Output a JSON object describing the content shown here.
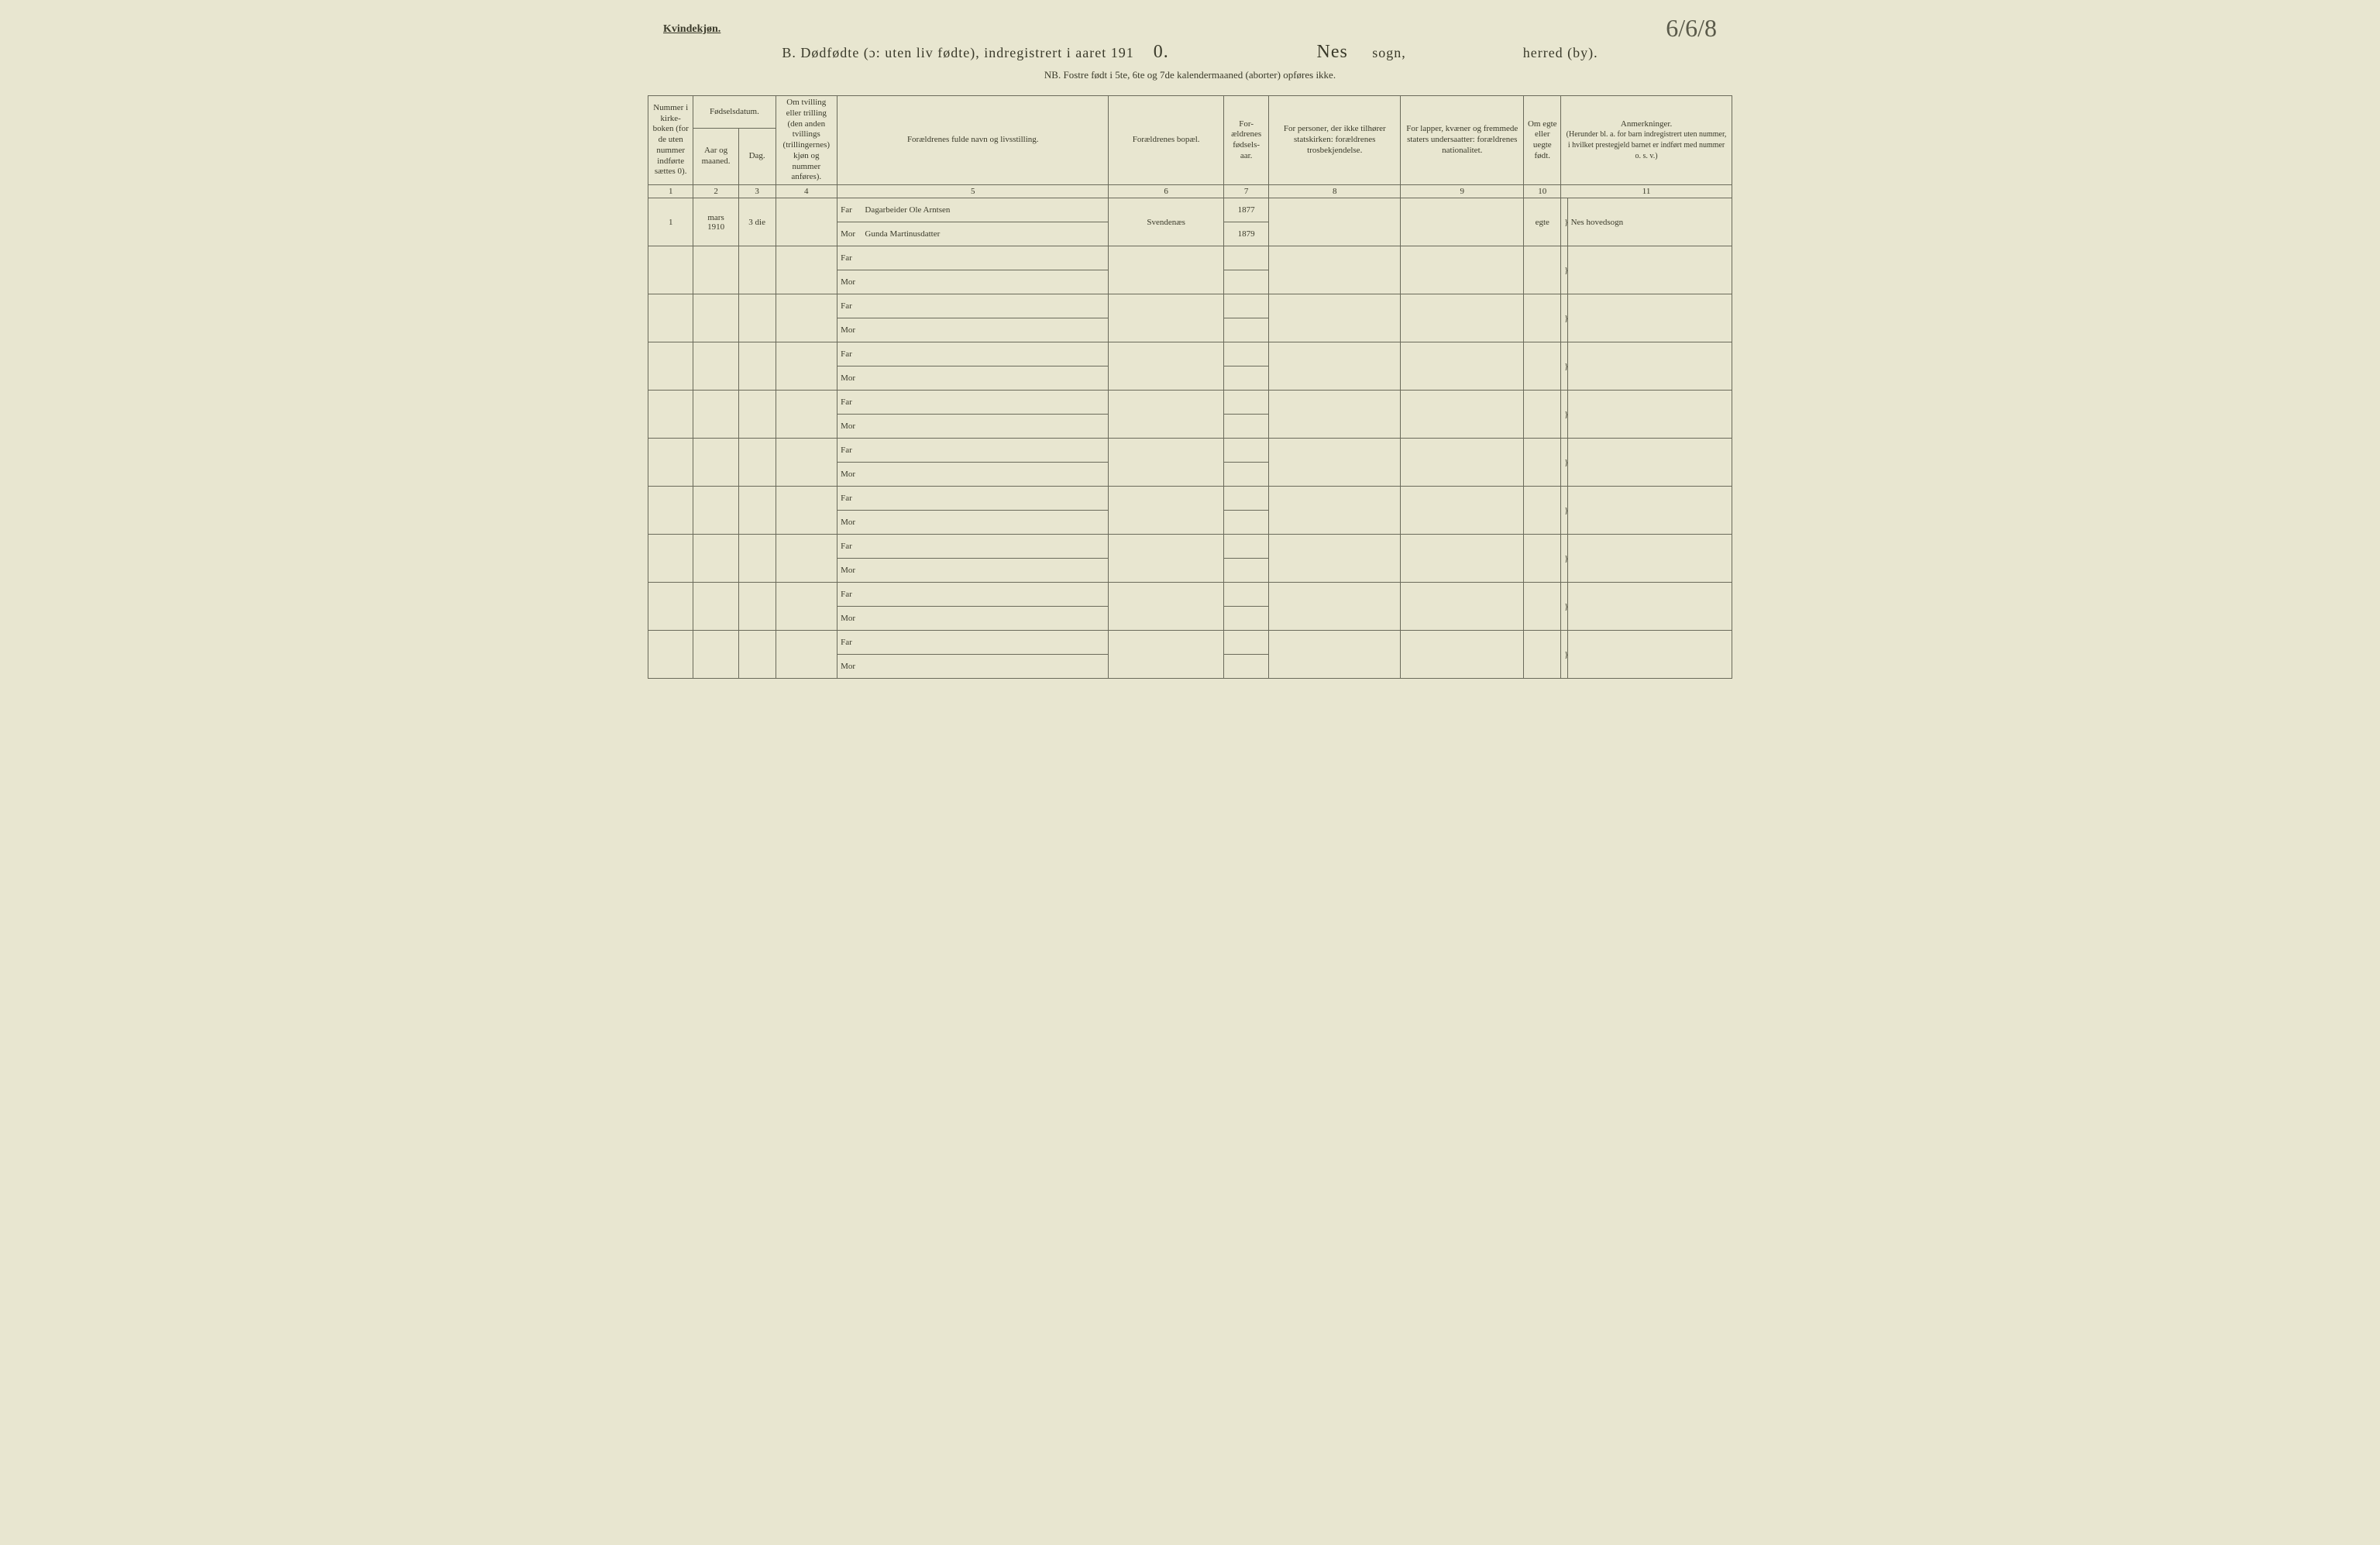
{
  "header": {
    "gender_label": "Kvindekjøn.",
    "page_number_hand": "6/6/8",
    "title_prefix": "B.   Dødfødte (ɔ: uten liv fødte), indregistrert i aaret 191",
    "title_year_hand": "0.",
    "parish_hand": "Nes",
    "sogn_label": "sogn,",
    "herred_label": "herred (by).",
    "subtitle": "NB.  Fostre født i 5te, 6te og 7de kalendermaaned (aborter) opføres ikke."
  },
  "columns": {
    "c1": "Nummer i kirke-boken (for de uten nummer indførte sættes 0).",
    "c2_top": "Fødselsdatum.",
    "c2a": "Aar og maaned.",
    "c2b": "Dag.",
    "c4": "Om tvilling eller trilling (den anden tvillings (trillingernes) kjøn og nummer anføres).",
    "c5": "Forældrenes fulde navn og livsstilling.",
    "c6": "Forældrenes bopæl.",
    "c7": "For-ældrenes fødsels-aar.",
    "c8": "For personer, der ikke tilhører statskirken: forældrenes trosbekjendelse.",
    "c9": "For lapper, kvæner og fremmede staters undersaatter: forældrenes nationalitet.",
    "c10": "Om egte eller uegte født.",
    "c11_top": "Anmerkninger.",
    "c11_sub": "(Herunder bl. a. for barn indregistrert uten nummer, i hvilket prestegjeld barnet er indført med nummer o. s. v.)"
  },
  "colnums": [
    "1",
    "2",
    "3",
    "4",
    "5",
    "6",
    "7",
    "8",
    "9",
    "10",
    "11"
  ],
  "labels": {
    "far": "Far",
    "mor": "Mor"
  },
  "entry": {
    "num": "1",
    "month": "mars",
    "year": "1910",
    "day": "3 die",
    "twin": "",
    "far_name": "Dagarbeider Ole Arntsen",
    "mor_name": "Gunda Martinusdatter",
    "bopael": "Svendenæs",
    "far_year": "1877",
    "mor_year": "1879",
    "c8": "",
    "c9": "",
    "egte": "egte",
    "remark": "Nes hovedsogn"
  },
  "blank_rows": 9
}
